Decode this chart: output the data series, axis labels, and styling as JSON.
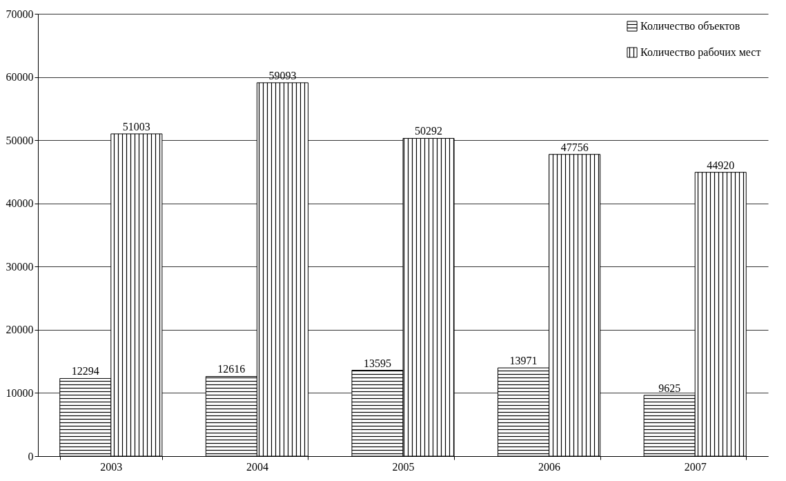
{
  "chart_data": {
    "type": "bar",
    "categories": [
      "2003",
      "2004",
      "2005",
      "2006",
      "2007"
    ],
    "series": [
      {
        "name": "Количество объектов",
        "color": "#000000",
        "values": [
          12294,
          12616,
          13595,
          13971,
          9625
        ]
      },
      {
        "name": "Количество рабочих мест",
        "color": "#000000",
        "values": [
          51003,
          59093,
          50292,
          47756,
          44920
        ]
      }
    ],
    "ylim": [
      0,
      70000
    ],
    "yticks": [
      0,
      10000,
      20000,
      30000,
      40000,
      50000,
      60000,
      70000
    ],
    "grid": "y",
    "legend": "top right",
    "data_labels": true
  }
}
